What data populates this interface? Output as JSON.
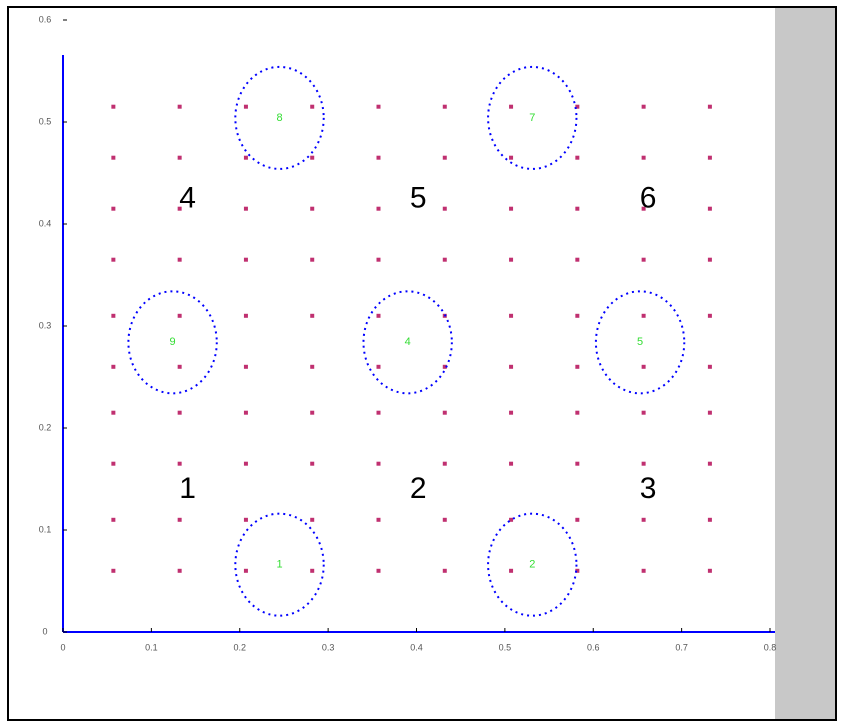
{
  "chart_data": {
    "type": "scatter",
    "xlim": [
      0,
      0.8
    ],
    "ylim": [
      0,
      0.6
    ],
    "xticks": [
      0,
      0.1,
      0.2,
      0.3,
      0.4,
      0.5,
      0.6,
      0.7,
      0.8
    ],
    "yticks": [
      0,
      0.1,
      0.2,
      0.3,
      0.4,
      0.5,
      0.6
    ],
    "axis_color": "#0000ff",
    "grid_x": [
      0.057,
      0.132,
      0.207,
      0.282,
      0.357,
      0.432,
      0.507,
      0.582,
      0.657,
      0.732
    ],
    "grid_y": [
      0.06,
      0.11,
      0.165,
      0.215,
      0.26,
      0.31,
      0.365,
      0.415,
      0.465,
      0.515
    ],
    "marker_color": "#c03070",
    "circle_color": "#0000ff",
    "circles": [
      {
        "x": 0.245,
        "y": 0.504,
        "r": 0.05,
        "label": "8"
      },
      {
        "x": 0.531,
        "y": 0.504,
        "r": 0.05,
        "label": "7"
      },
      {
        "x": 0.124,
        "y": 0.284,
        "r": 0.05,
        "label": "9"
      },
      {
        "x": 0.39,
        "y": 0.284,
        "r": 0.05,
        "label": "4"
      },
      {
        "x": 0.653,
        "y": 0.284,
        "r": 0.05,
        "label": "5"
      },
      {
        "x": 0.245,
        "y": 0.066,
        "r": 0.05,
        "label": "1"
      },
      {
        "x": 0.531,
        "y": 0.066,
        "r": 0.05,
        "label": "2"
      }
    ],
    "regions": [
      {
        "x": 0.141,
        "y": 0.424,
        "label": "4"
      },
      {
        "x": 0.402,
        "y": 0.424,
        "label": "5"
      },
      {
        "x": 0.662,
        "y": 0.424,
        "label": "6"
      },
      {
        "x": 0.141,
        "y": 0.139,
        "label": "1"
      },
      {
        "x": 0.402,
        "y": 0.139,
        "label": "2"
      },
      {
        "x": 0.662,
        "y": 0.139,
        "label": "3"
      }
    ]
  }
}
